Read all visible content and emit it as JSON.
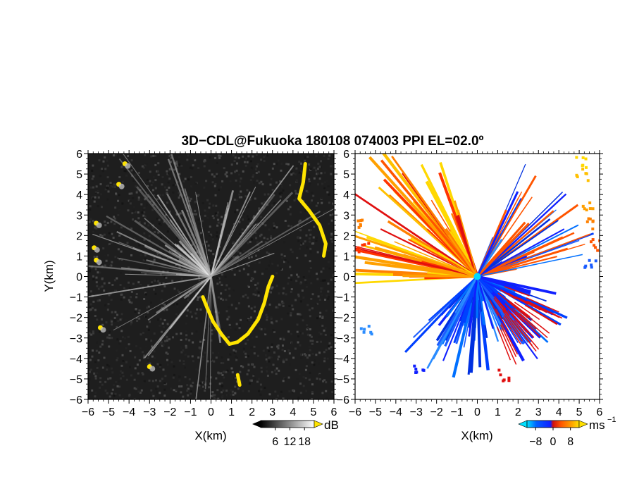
{
  "figure": {
    "title": "3D−CDL@Fukuoka 180108 074003 PPI EL=02.0º"
  },
  "chart_data": [
    {
      "type": "heatmap",
      "name": "reflectivity",
      "xlabel": "X(km)",
      "ylabel": "Y(km)",
      "xlim": [
        -6,
        6
      ],
      "ylim": [
        -6,
        6
      ],
      "x_ticks": [
        "−6",
        "−5",
        "−4",
        "−3",
        "−2",
        "−1",
        "0",
        "1",
        "2",
        "3",
        "4",
        "5",
        "6"
      ],
      "y_ticks": [
        "6",
        "5",
        "4",
        "3",
        "2",
        "1",
        "0",
        "−1",
        "−2",
        "−3",
        "−4",
        "−5",
        "−6"
      ],
      "colorbar": {
        "unit": "dB",
        "ticks": [
          "6",
          "12",
          "18"
        ],
        "values": [
          6,
          12,
          18
        ],
        "palette": [
          "#000000",
          "#ffffff"
        ],
        "high_color": "#ffe400"
      },
      "background": "#1e1e1e",
      "highlight_color": "#ffe400"
    },
    {
      "type": "heatmap",
      "name": "doppler-velocity",
      "xlabel": "X(km)",
      "ylabel": "",
      "xlim": [
        -6,
        6
      ],
      "ylim": [
        -6,
        6
      ],
      "x_ticks": [
        "−6",
        "−5",
        "−4",
        "−3",
        "−2",
        "−1",
        "0",
        "1",
        "2",
        "3",
        "4",
        "5",
        "6"
      ],
      "y_ticks": [
        "6",
        "5",
        "4",
        "3",
        "2",
        "1",
        "0",
        "−1",
        "−2",
        "−3",
        "−4",
        "−5",
        "−6"
      ],
      "colorbar": {
        "unit": "ms",
        "unit_sup": "−1",
        "ticks": [
          "−8",
          "0",
          "8"
        ],
        "values": [
          -8,
          0,
          8
        ],
        "palette": [
          "#00e0ff",
          "#0050ff",
          "#1020ff",
          "#d01010",
          "#ff5500",
          "#ffa000",
          "#ffe000"
        ]
      },
      "background": "#ffffff"
    }
  ]
}
